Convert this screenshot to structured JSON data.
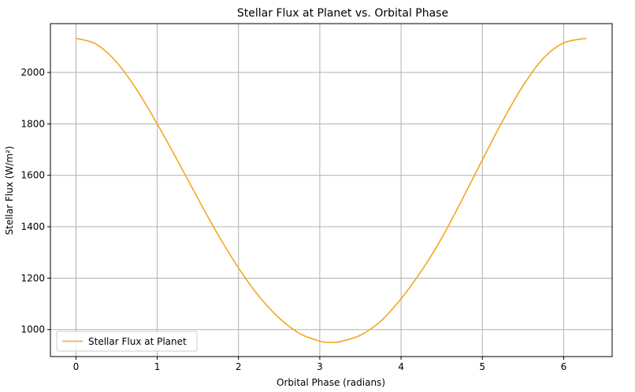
{
  "chart_data": {
    "type": "line",
    "title": "Stellar Flux at Planet vs. Orbital Phase",
    "xlabel": "Orbital Phase (radians)",
    "ylabel": "Stellar Flux (W/m²)",
    "xlim": [
      -0.314,
      6.597
    ],
    "ylim": [
      895,
      2190
    ],
    "xticks": [
      0,
      1,
      2,
      3,
      4,
      5,
      6
    ],
    "yticks": [
      1000,
      1200,
      1400,
      1600,
      1800,
      2000
    ],
    "grid": true,
    "legend_position": "lower-left",
    "series": [
      {
        "name": "Stellar Flux at Planet",
        "color": "#f5a623",
        "x": [
          0,
          0.25,
          0.5,
          0.75,
          1.0,
          1.25,
          1.5,
          1.75,
          2.0,
          2.25,
          2.5,
          2.75,
          3.0,
          3.1416,
          3.25,
          3.5,
          3.75,
          4.0,
          4.25,
          4.5,
          4.75,
          5.0,
          5.25,
          5.5,
          5.75,
          6.0,
          6.2832
        ],
        "y": [
          2133,
          2110,
          2040,
          1932,
          1800,
          1657,
          1510,
          1368,
          1240,
          1130,
          1045,
          985,
          955,
          950,
          953,
          978,
          1033,
          1120,
          1228,
          1356,
          1505,
          1660,
          1812,
          1948,
          2055,
          2115,
          2133
        ]
      }
    ]
  }
}
